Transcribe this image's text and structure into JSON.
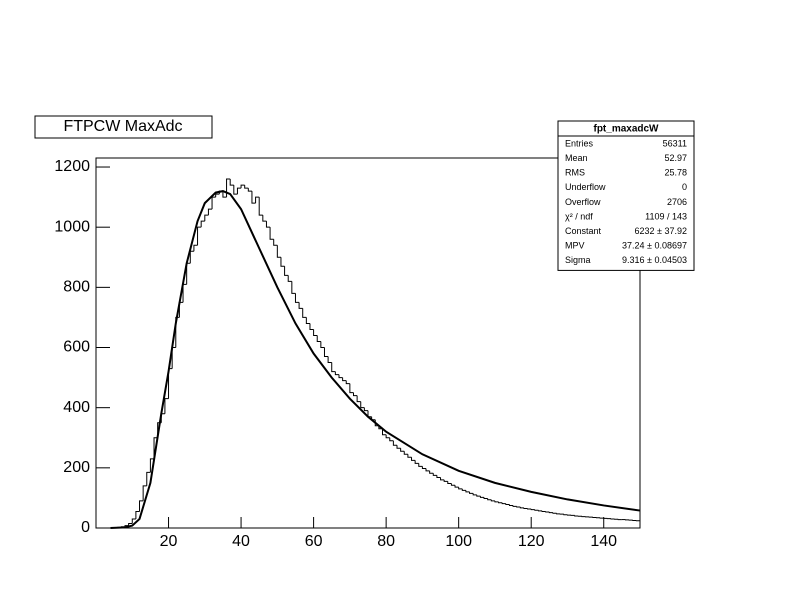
{
  "chart_data": {
    "type": "histogram",
    "title": "FTPCW MaxAdc",
    "bins": [
      0,
      1,
      2,
      3,
      4,
      5,
      6,
      7,
      8,
      9,
      10,
      11,
      12,
      13,
      14,
      15,
      16,
      17,
      18,
      19,
      20,
      21,
      22,
      23,
      24,
      25,
      26,
      27,
      28,
      29,
      30,
      31,
      32,
      33,
      34,
      35,
      36,
      37,
      38,
      39,
      40,
      41,
      42,
      43,
      44,
      45,
      46,
      47,
      48,
      49,
      50,
      51,
      52,
      53,
      54,
      55,
      56,
      57,
      58,
      59,
      60,
      61,
      62,
      63,
      64,
      65,
      66,
      67,
      68,
      69,
      70,
      71,
      72,
      73,
      74,
      75,
      76,
      77,
      78,
      79,
      80,
      81,
      82,
      83,
      84,
      85,
      86,
      87,
      88,
      89,
      90,
      91,
      92,
      93,
      94,
      95,
      96,
      97,
      98,
      99,
      100,
      101,
      102,
      103,
      104,
      105,
      106,
      107,
      108,
      109,
      110,
      111,
      112,
      113,
      114,
      115,
      116,
      117,
      118,
      119,
      120,
      121,
      122,
      123,
      124,
      125,
      126,
      127,
      128,
      129,
      130,
      131,
      132,
      133,
      134,
      135,
      136,
      137,
      138,
      139,
      140,
      141,
      142,
      143,
      144,
      145,
      146,
      147,
      148,
      149,
      150
    ],
    "values": [
      0,
      0,
      0,
      0,
      0,
      1,
      2,
      4,
      8,
      15,
      30,
      55,
      90,
      140,
      185,
      230,
      300,
      350,
      380,
      430,
      530,
      600,
      700,
      750,
      810,
      880,
      920,
      940,
      1000,
      1020,
      1040,
      1060,
      1100,
      1110,
      1120,
      1100,
      1160,
      1140,
      1110,
      1130,
      1140,
      1130,
      1120,
      1080,
      1100,
      1040,
      1020,
      1000,
      960,
      940,
      900,
      870,
      840,
      820,
      780,
      750,
      730,
      700,
      680,
      660,
      640,
      620,
      600,
      570,
      550,
      520,
      510,
      500,
      490,
      480,
      450,
      440,
      420,
      400,
      390,
      370,
      360,
      340,
      330,
      310,
      300,
      290,
      275,
      265,
      255,
      245,
      235,
      225,
      215,
      205,
      198,
      190,
      182,
      175,
      168,
      160,
      155,
      148,
      142,
      136,
      130,
      125,
      120,
      115,
      110,
      106,
      102,
      98,
      94,
      90,
      87,
      84,
      81,
      78,
      75,
      72,
      70,
      67,
      65,
      63,
      61,
      59,
      57,
      55,
      53,
      51,
      49,
      47,
      46,
      44,
      43,
      42,
      40,
      39,
      38,
      37,
      36,
      35,
      34,
      33,
      32,
      31,
      30,
      29,
      28,
      28,
      27,
      26,
      25,
      24
    ],
    "fit": {
      "x": [
        4,
        8,
        10,
        12,
        15,
        18,
        20,
        22,
        25,
        28,
        30,
        33,
        35,
        37,
        40,
        45,
        50,
        55,
        60,
        65,
        70,
        75,
        80,
        90,
        100,
        110,
        120,
        130,
        140,
        150
      ],
      "values": [
        0,
        2,
        8,
        30,
        150,
        380,
        520,
        680,
        880,
        1020,
        1080,
        1115,
        1120,
        1110,
        1060,
        930,
        800,
        680,
        580,
        500,
        430,
        370,
        320,
        245,
        190,
        150,
        120,
        95,
        75,
        58
      ]
    },
    "xlim": [
      0,
      150
    ],
    "xticks": [
      20,
      40,
      60,
      80,
      100,
      120,
      140
    ],
    "ylim": [
      0,
      1230
    ],
    "yticks": [
      0,
      200,
      400,
      600,
      800,
      1000,
      1200
    ],
    "stats": {
      "title": "fpt_maxadcW",
      "rows": [
        [
          "Entries",
          "56311"
        ],
        [
          "Mean",
          "52.97"
        ],
        [
          "RMS",
          "25.78"
        ],
        [
          "Underflow",
          "0"
        ],
        [
          "Overflow",
          "2706"
        ],
        [
          "χ² / ndf",
          "1109 / 143"
        ],
        [
          "Constant",
          "6232 ± 37.92"
        ],
        [
          "MPV",
          "37.24 ± 0.08697"
        ],
        [
          "Sigma",
          "9.316 ± 0.04503"
        ]
      ]
    }
  }
}
